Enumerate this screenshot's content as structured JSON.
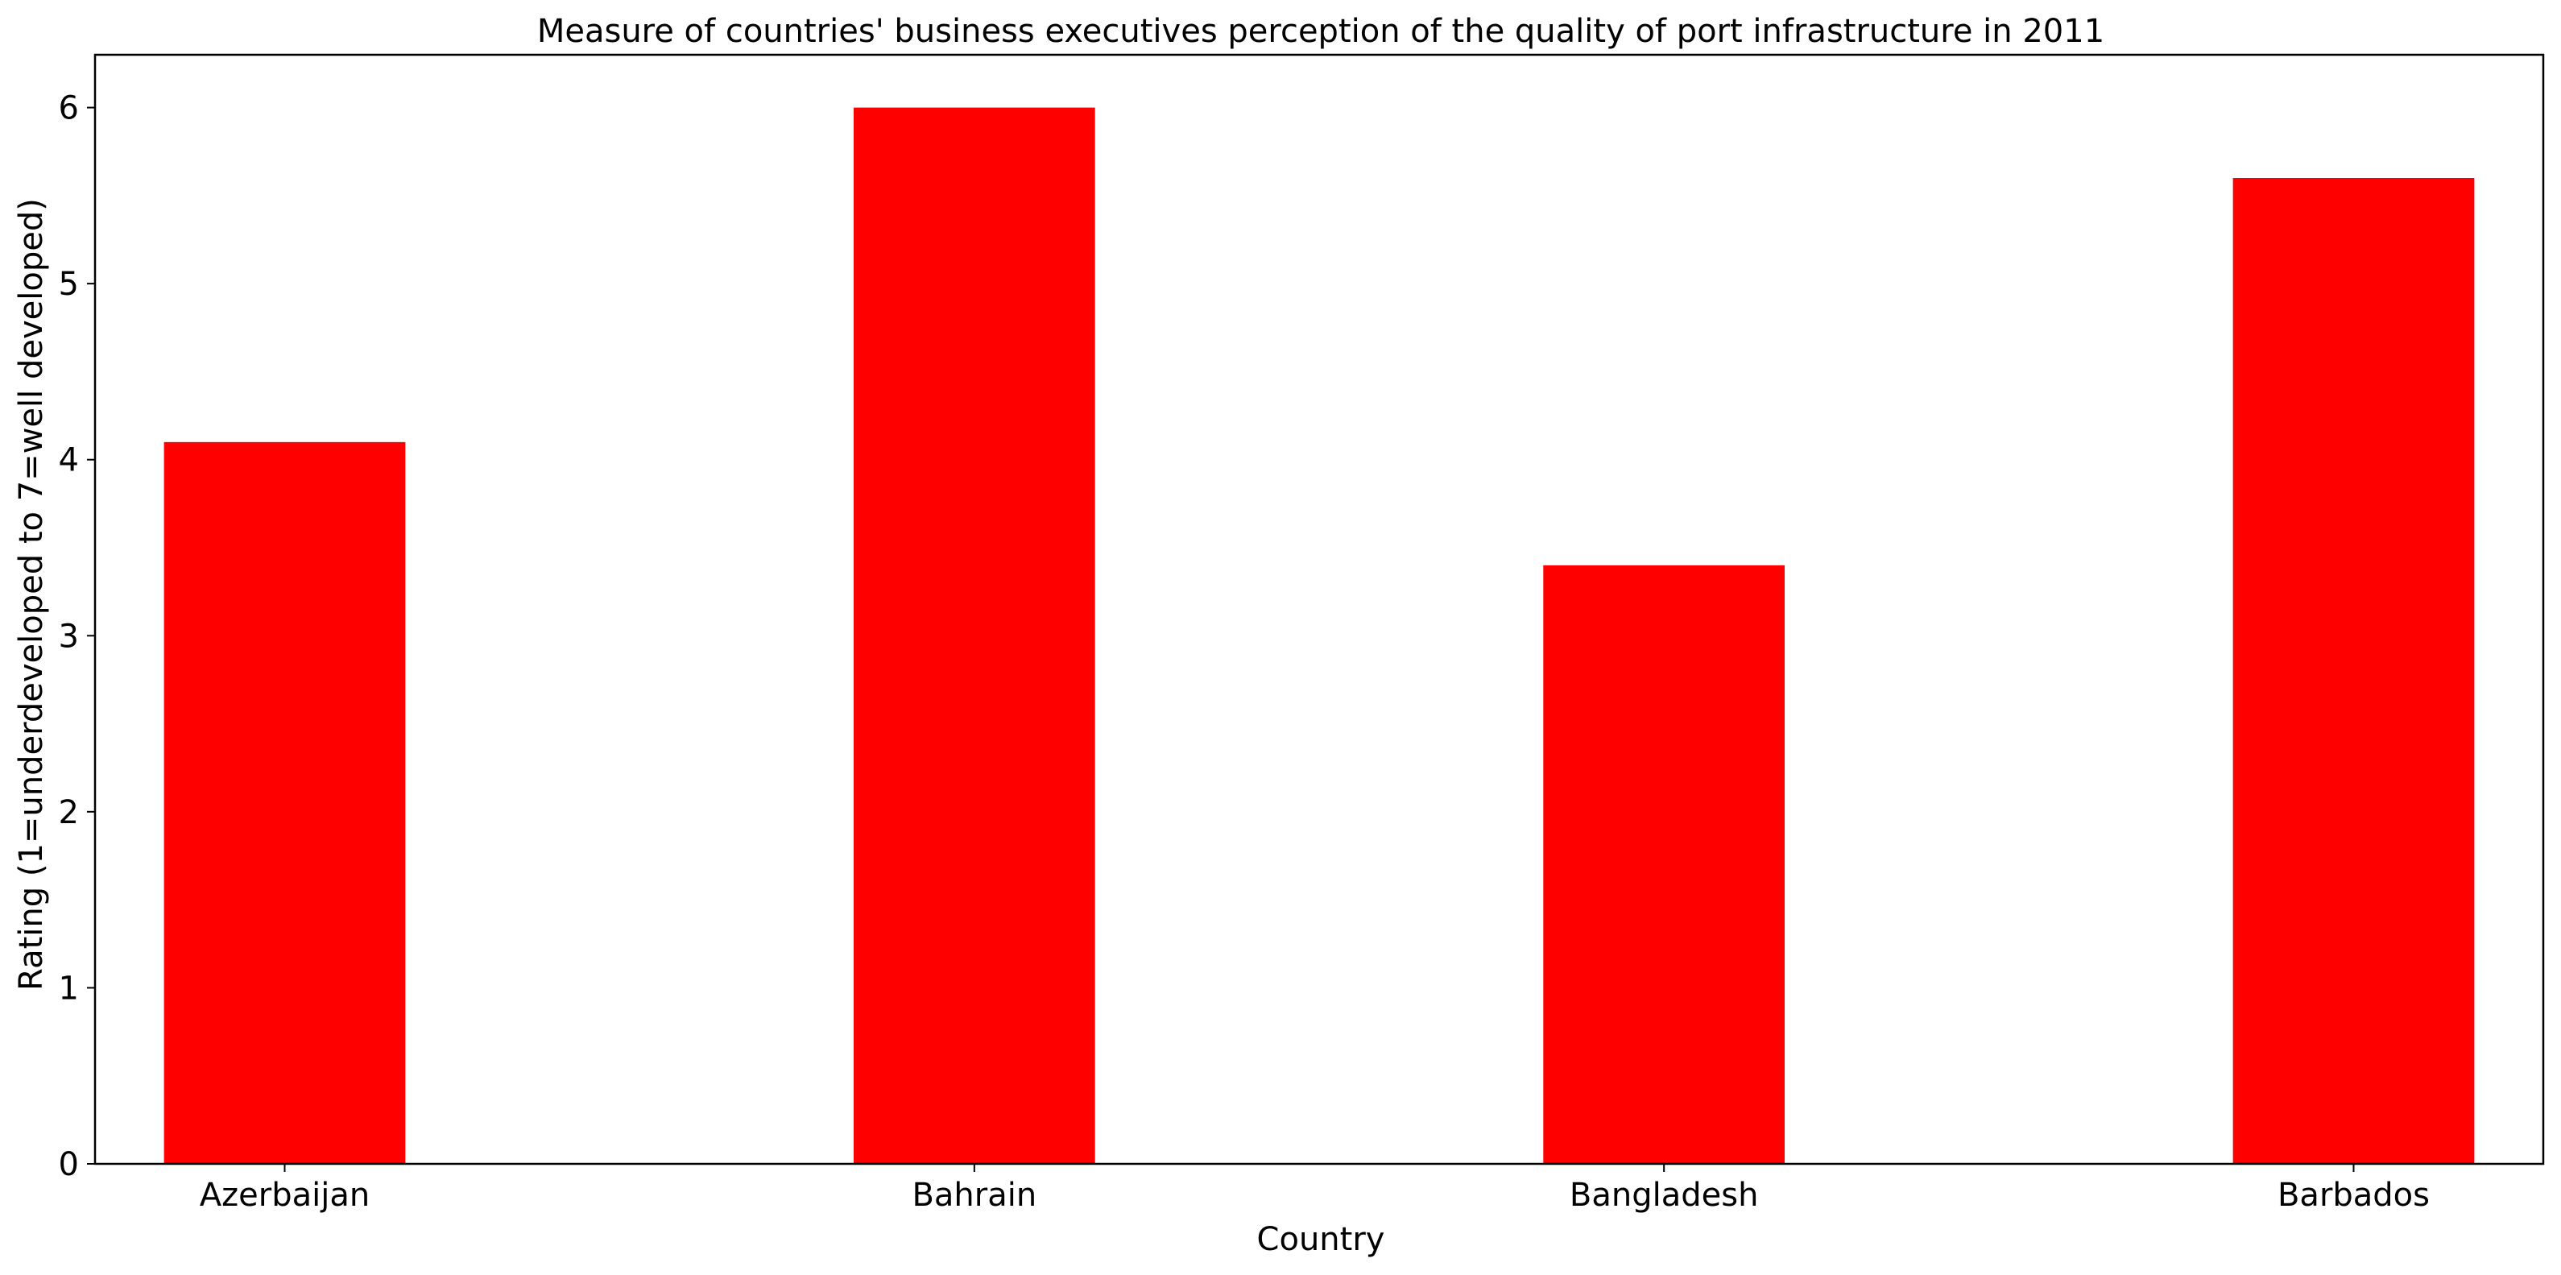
{
  "chart_data": {
    "type": "bar",
    "title": "Measure of countries' business executives perception of the quality of port infrastructure in 2011",
    "xlabel": "Country",
    "ylabel": "Rating (1=underdeveloped to 7=well developed)",
    "categories": [
      "Azerbaijan",
      "Bahrain",
      "Bangladesh",
      "Barbados"
    ],
    "values": [
      4.1,
      6.0,
      3.4,
      5.6
    ],
    "ylim": [
      0,
      6.3
    ],
    "yticks": [
      0,
      1,
      2,
      3,
      4,
      5,
      6
    ],
    "bar_color": "#ff0000",
    "grid": false,
    "legend": "none"
  }
}
